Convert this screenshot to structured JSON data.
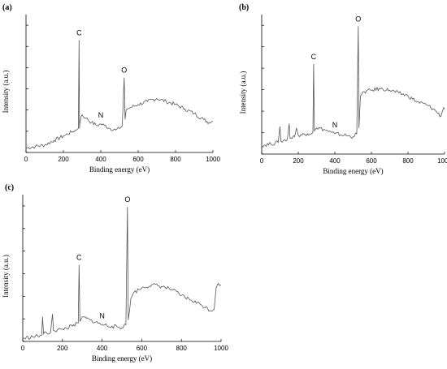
{
  "chart_data": [
    {
      "type": "line",
      "panel_label": "(a)",
      "xlabel": "Binding energy (eV)",
      "ylabel": "Intensity (a.u.)",
      "xlim": [
        0,
        1000
      ],
      "xticks": [
        0,
        200,
        400,
        600,
        800,
        1000
      ],
      "yticks_labeled": false,
      "line_color": "#555555",
      "x": [
        0,
        50,
        100,
        150,
        200,
        250,
        270,
        280,
        284,
        286,
        288,
        295,
        300,
        320,
        350,
        380,
        400,
        420,
        450,
        480,
        500,
        515,
        525,
        530,
        535,
        540,
        560,
        600,
        650,
        700,
        750,
        800,
        850,
        900,
        950,
        980,
        1000
      ],
      "y": [
        3,
        4,
        5,
        8,
        11,
        14,
        15,
        16,
        75,
        16,
        19,
        24,
        25,
        23,
        20,
        18,
        19,
        18,
        16,
        15,
        16,
        18,
        50,
        22,
        28,
        29,
        30,
        32,
        34,
        36,
        34,
        32,
        29,
        26,
        22,
        20,
        21
      ],
      "annotations": [
        {
          "text": "C",
          "x": 284,
          "y": 75
        },
        {
          "text": "N",
          "x": 400,
          "y": 19
        },
        {
          "text": "O",
          "x": 525,
          "y": 50
        }
      ]
    },
    {
      "type": "line",
      "panel_label": "(b)",
      "xlabel": "Binding energy (eV)",
      "ylabel": "Intensity (a.u.)",
      "xlim": [
        0,
        1000
      ],
      "xticks": [
        0,
        200,
        400,
        600,
        800,
        1000
      ],
      "yticks_labeled": false,
      "line_color": "#555555",
      "x": [
        0,
        50,
        90,
        100,
        105,
        140,
        150,
        155,
        180,
        190,
        200,
        250,
        280,
        284,
        288,
        300,
        340,
        380,
        400,
        450,
        500,
        520,
        528,
        532,
        540,
        560,
        600,
        650,
        700,
        750,
        800,
        850,
        900,
        950,
        980,
        995,
        1000
      ],
      "y": [
        6,
        7,
        8,
        19,
        9,
        10,
        21,
        11,
        12,
        18,
        13,
        14,
        15,
        62,
        16,
        18,
        17,
        15,
        14,
        13,
        12,
        14,
        88,
        18,
        40,
        43,
        44,
        45,
        44,
        42,
        40,
        36,
        34,
        30,
        26,
        32,
        31
      ],
      "annotations": [
        {
          "text": "C",
          "x": 284,
          "y": 62
        },
        {
          "text": "N",
          "x": 400,
          "y": 14
        },
        {
          "text": "O",
          "x": 528,
          "y": 88
        }
      ]
    },
    {
      "type": "line",
      "panel_label": "(c)",
      "xlabel": "Binding energy (eV)",
      "ylabel": "Intensity (a.u.)",
      "xlim": [
        0,
        1000
      ],
      "xticks": [
        0,
        200,
        400,
        600,
        800,
        1000
      ],
      "yticks_labeled": false,
      "line_color": "#555555",
      "x": [
        0,
        50,
        95,
        100,
        105,
        140,
        150,
        155,
        200,
        250,
        280,
        284,
        288,
        300,
        340,
        380,
        400,
        450,
        500,
        520,
        528,
        532,
        545,
        560,
        600,
        650,
        700,
        750,
        800,
        850,
        900,
        950,
        965,
        975,
        985,
        1000
      ],
      "y": [
        2,
        3,
        4,
        16,
        5,
        6,
        18,
        7,
        8,
        10,
        12,
        50,
        13,
        16,
        14,
        12,
        11,
        10,
        9,
        11,
        88,
        14,
        28,
        32,
        35,
        37,
        36,
        34,
        30,
        27,
        24,
        20,
        21,
        35,
        38,
        37
      ],
      "annotations": [
        {
          "text": "C",
          "x": 284,
          "y": 50
        },
        {
          "text": "N",
          "x": 400,
          "y": 11
        },
        {
          "text": "O",
          "x": 528,
          "y": 88
        }
      ]
    }
  ]
}
